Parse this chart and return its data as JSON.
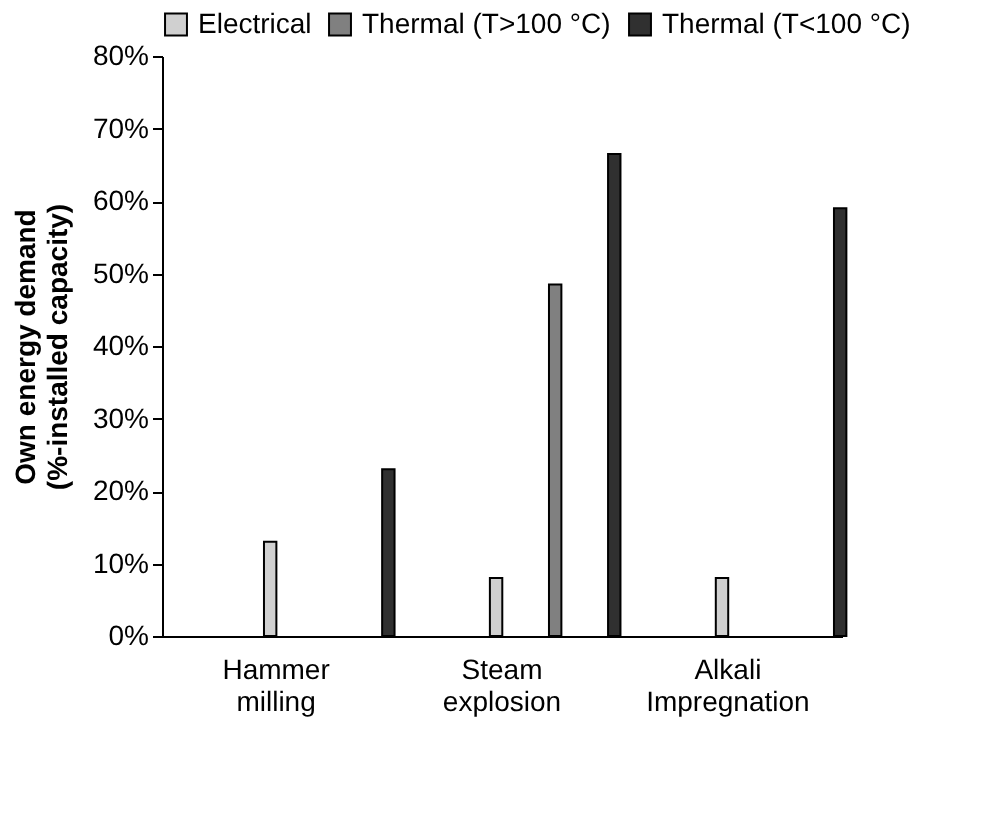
{
  "chart_data": {
    "type": "bar",
    "ylabel": "Own energy demand\n(%-installed capacity)",
    "categories": [
      "Hammer milling",
      "Steam explosion",
      "Alkali Impregnation"
    ],
    "series": [
      {
        "name": "Electrical",
        "color": "#d0d0d0",
        "values": [
          13,
          8,
          8
        ]
      },
      {
        "name": "Thermal (T>100 °C)",
        "color": "#808080",
        "values": [
          null,
          48.5,
          null
        ]
      },
      {
        "name": "Thermal (T<100 °C)",
        "color": "#303030",
        "values": [
          23,
          66.5,
          59
        ]
      }
    ],
    "ylim": [
      0,
      80
    ],
    "yticks": [
      {
        "value": 0,
        "label": "0%"
      },
      {
        "value": 10,
        "label": "10%"
      },
      {
        "value": 20,
        "label": "20%"
      },
      {
        "value": 30,
        "label": "30%"
      },
      {
        "value": 40,
        "label": "40%"
      },
      {
        "value": 50,
        "label": "50%"
      },
      {
        "value": 60,
        "label": "60%"
      },
      {
        "value": 70,
        "label": "70%"
      },
      {
        "value": 80,
        "label": "80%"
      }
    ],
    "grid": false,
    "legend": "top"
  }
}
